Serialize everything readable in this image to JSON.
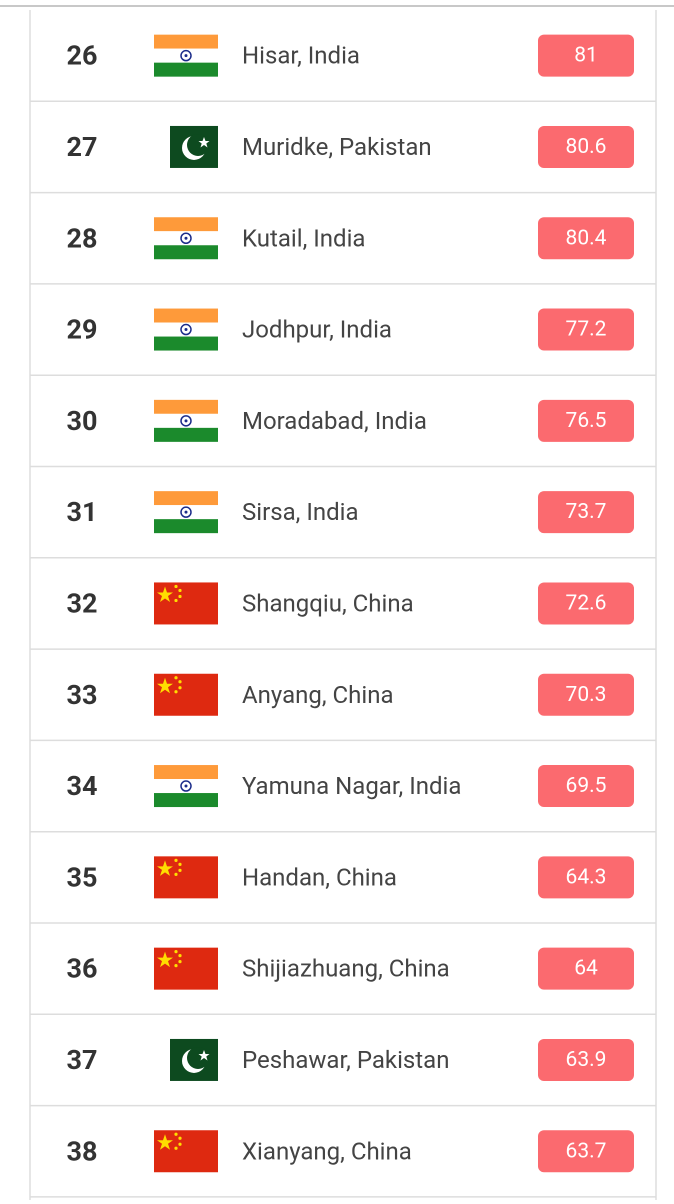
{
  "table": {
    "rows": [
      {
        "rank": 26,
        "city": "Hisar, India",
        "value": 81
      },
      {
        "rank": 27,
        "city": "Muridke, Pakistan",
        "value": 80.6
      },
      {
        "rank": 28,
        "city": "Kutail, India",
        "value": 80.4
      },
      {
        "rank": 29,
        "city": "Jodhpur, India",
        "value": 77.2
      },
      {
        "rank": 30,
        "city": "Moradabad, India",
        "value": 76.5
      },
      {
        "rank": 31,
        "city": "Sirsa, India",
        "value": 73.7
      },
      {
        "rank": 32,
        "city": "Shangqiu, China",
        "value": 72.6
      },
      {
        "rank": 33,
        "city": "Anyang, China",
        "value": 70.3
      },
      {
        "rank": 34,
        "city": "Yamuna Nagar, India",
        "value": 69.5
      },
      {
        "rank": 35,
        "city": "Handan, China",
        "value": 64.3
      },
      {
        "rank": 36,
        "city": "Shijiazhuang, China",
        "value": 64
      },
      {
        "rank": 37,
        "city": "Peshawar, Pakistan",
        "value": 63.9
      },
      {
        "rank": 38,
        "city": "Xianyang, China",
        "value": 63.7
      }
    ]
  }
}
